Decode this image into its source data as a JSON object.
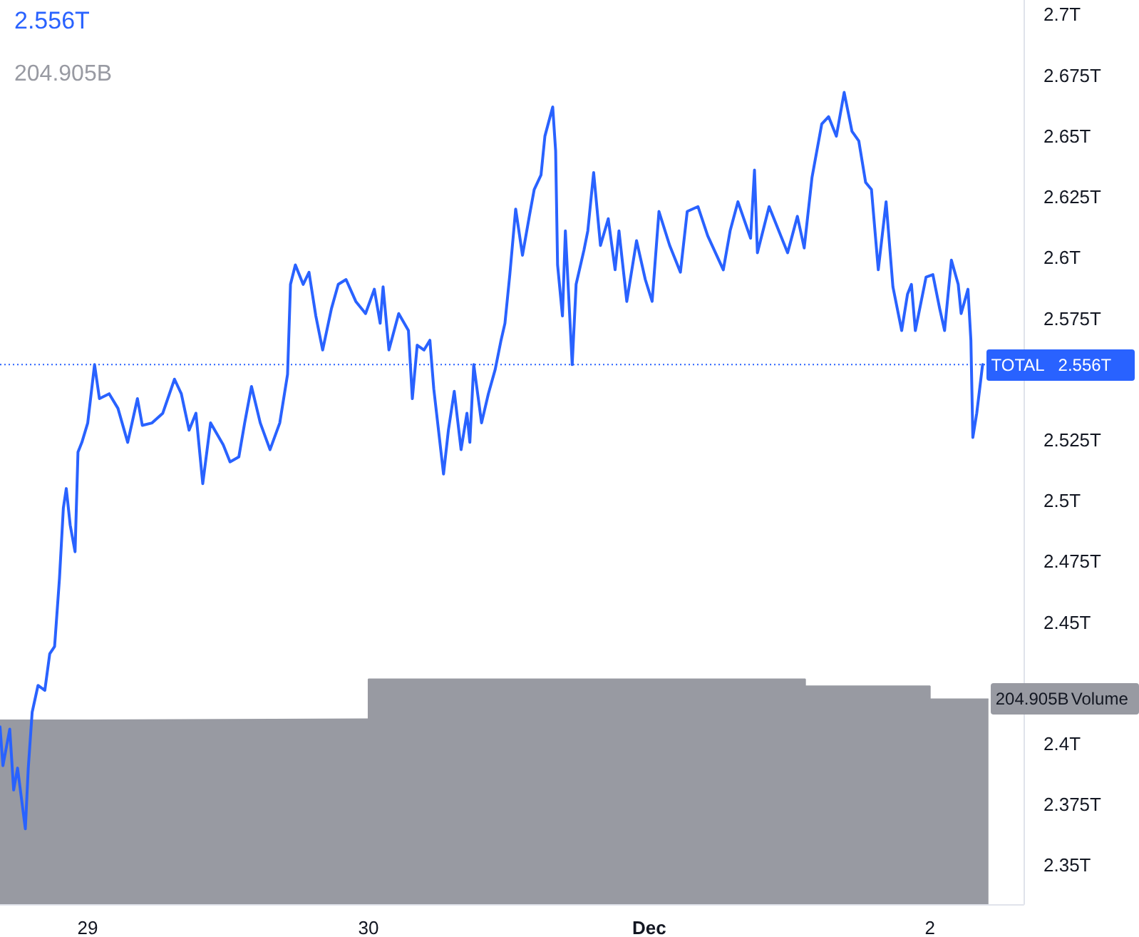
{
  "chart_data": {
    "type": "line",
    "annotations": [
      "2.556T",
      "204.905B"
    ],
    "xlim": [
      "--11-28T16:30",
      "--12-02T08:00"
    ],
    "xticks": [
      {
        "value": "--11-29",
        "label": "29"
      },
      {
        "value": "--11-30",
        "label": "30"
      },
      {
        "value": "--12-01",
        "label": "Dec"
      },
      {
        "value": "--12-02",
        "label": "2"
      }
    ],
    "ylim": [
      2.334,
      2.706
    ],
    "yticks": [
      {
        "value": 2.35,
        "label": "2.35T"
      },
      {
        "value": 2.375,
        "label": "2.375T"
      },
      {
        "value": 2.4,
        "label": "2.4T"
      },
      {
        "value": 2.45,
        "label": "2.45T"
      },
      {
        "value": 2.475,
        "label": "2.475T"
      },
      {
        "value": 2.5,
        "label": "2.5T"
      },
      {
        "value": 2.525,
        "label": "2.525T"
      },
      {
        "value": 2.575,
        "label": "2.575T"
      },
      {
        "value": 2.6,
        "label": "2.6T"
      },
      {
        "value": 2.625,
        "label": "2.625T"
      },
      {
        "value": 2.65,
        "label": "2.65T"
      },
      {
        "value": 2.675,
        "label": "2.675T"
      },
      {
        "value": 2.7,
        "label": "2.7T"
      }
    ],
    "y2lim": [
      0,
      904
    ],
    "grid": false,
    "legend": false,
    "ref_lines": [
      {
        "axis": "y",
        "value": 2.556,
        "label": "2.556T",
        "color": "#2962ff",
        "line_style": "dotted"
      }
    ],
    "series": [
      {
        "name": "TOTAL",
        "color": "#2962ff",
        "x": [
          "--11-28T16:30",
          "--11-28T16:45",
          "--11-28T17:20",
          "--11-28T17:40",
          "--11-28T18:00",
          "--11-28T18:40",
          "--11-28T18:55",
          "--11-28T19:15",
          "--11-28T19:45",
          "--11-28T20:20",
          "--11-28T20:45",
          "--11-28T21:10",
          "--11-28T21:35",
          "--11-28T21:55",
          "--11-28T22:10",
          "--11-28T22:30",
          "--11-28T22:55",
          "--11-28T23:10",
          "--11-28T23:30",
          "--11-29T00:00",
          "--11-29T00:35",
          "--11-29T01:00",
          "--11-29T01:50",
          "--11-29T02:35",
          "--11-29T03:25",
          "--11-29T04:15",
          "--11-29T04:40",
          "--11-29T05:30",
          "--11-29T06:25",
          "--11-29T07:25",
          "--11-29T08:00",
          "--11-29T08:40",
          "--11-29T09:15",
          "--11-29T09:50",
          "--11-29T10:30",
          "--11-29T11:35",
          "--11-29T12:10",
          "--11-29T12:55",
          "--11-29T13:25",
          "--11-29T14:00",
          "--11-29T14:45",
          "--11-29T15:35",
          "--11-29T16:25",
          "--11-29T17:05",
          "--11-29T17:20",
          "--11-29T17:45",
          "--11-29T18:25",
          "--11-29T18:55",
          "--11-29T19:30",
          "--11-29T20:05",
          "--11-29T20:50",
          "--11-29T21:25",
          "--11-29T22:05",
          "--11-29T22:55",
          "--11-29T23:45",
          "--11-30T00:30",
          "--11-30T01:00",
          "--11-30T01:15",
          "--11-30T01:45",
          "--11-30T02:35",
          "--11-30T03:25",
          "--11-30T03:45",
          "--11-30T04:10",
          "--11-30T04:45",
          "--11-30T05:15",
          "--11-30T05:35",
          "--11-30T06:25",
          "--11-30T06:50",
          "--11-30T07:20",
          "--11-30T07:55",
          "--11-30T08:25",
          "--11-30T08:40",
          "--11-30T09:00",
          "--11-30T09:40",
          "--11-30T10:15",
          "--11-30T10:50",
          "--11-30T11:20",
          "--11-30T11:40",
          "--11-30T12:05",
          "--11-30T12:35",
          "--11-30T13:10",
          "--11-30T13:45",
          "--11-30T14:10",
          "--11-30T14:45",
          "--11-30T15:05",
          "--11-30T15:45",
          "--11-30T16:00",
          "--11-30T16:10",
          "--11-30T16:35",
          "--11-30T16:50",
          "--11-30T17:25",
          "--11-30T17:45",
          "--11-30T18:25",
          "--11-30T18:45",
          "--11-30T19:15",
          "--11-30T19:50",
          "--11-30T20:30",
          "--11-30T21:05",
          "--11-30T21:25",
          "--11-30T22:05",
          "--11-30T22:55",
          "--11-30T23:40",
          "--12-01T00:15",
          "--12-01T00:50",
          "--12-01T01:45",
          "--12-01T02:40",
          "--12-01T03:15",
          "--12-01T04:10",
          "--12-01T05:00",
          "--12-01T06:20",
          "--12-01T06:55",
          "--12-01T07:35",
          "--12-01T08:40",
          "--12-01T09:00",
          "--12-01T09:15",
          "--12-01T10:15",
          "--12-01T11:25",
          "--12-01T11:50",
          "--12-01T12:40",
          "--12-01T13:15",
          "--12-01T13:55",
          "--12-01T14:45",
          "--12-01T15:20",
          "--12-01T16:00",
          "--12-01T16:40",
          "--12-01T17:20",
          "--12-01T17:55",
          "--12-01T18:30",
          "--12-01T19:00",
          "--12-01T19:35",
          "--12-01T20:15",
          "--12-01T20:50",
          "--12-01T21:35",
          "--12-01T22:05",
          "--12-01T22:25",
          "--12-01T22:45",
          "--12-01T23:40",
          "--12-02T00:15",
          "--12-02T00:50",
          "--12-02T01:15",
          "--12-02T01:50",
          "--12-02T02:25",
          "--12-02T02:40",
          "--12-02T03:15",
          "--12-02T03:30",
          "--12-02T03:40",
          "--12-02T04:00",
          "--12-02T04:30"
        ],
        "values": [
          2.407,
          2.391,
          2.406,
          2.381,
          2.39,
          2.365,
          2.39,
          2.413,
          2.424,
          2.422,
          2.437,
          2.44,
          2.468,
          2.497,
          2.505,
          2.49,
          2.479,
          2.52,
          2.524,
          2.532,
          2.556,
          2.542,
          2.544,
          2.538,
          2.524,
          2.542,
          2.531,
          2.532,
          2.536,
          2.55,
          2.544,
          2.529,
          2.536,
          2.507,
          2.532,
          2.523,
          2.516,
          2.518,
          2.532,
          2.547,
          2.532,
          2.521,
          2.532,
          2.552,
          2.589,
          2.597,
          2.589,
          2.594,
          2.576,
          2.562,
          2.579,
          2.589,
          2.591,
          2.582,
          2.577,
          2.587,
          2.573,
          2.588,
          2.562,
          2.577,
          2.57,
          2.542,
          2.564,
          2.562,
          2.566,
          2.546,
          2.511,
          2.529,
          2.545,
          2.521,
          2.536,
          2.524,
          2.556,
          2.532,
          2.544,
          2.554,
          2.566,
          2.573,
          2.593,
          2.62,
          2.601,
          2.617,
          2.628,
          2.634,
          2.65,
          2.662,
          2.644,
          2.597,
          2.576,
          2.611,
          2.556,
          2.589,
          2.603,
          2.611,
          2.635,
          2.605,
          2.616,
          2.595,
          2.611,
          2.582,
          2.607,
          2.591,
          2.582,
          2.619,
          2.605,
          2.594,
          2.619,
          2.621,
          2.609,
          2.595,
          2.611,
          2.623,
          2.608,
          2.636,
          2.602,
          2.621,
          2.607,
          2.602,
          2.617,
          2.604,
          2.633,
          2.655,
          2.658,
          2.65,
          2.668,
          2.652,
          2.648,
          2.631,
          2.628,
          2.595,
          2.623,
          2.588,
          2.57,
          2.585,
          2.589,
          2.57,
          2.592,
          2.593,
          2.579,
          2.57,
          2.599,
          2.589,
          2.577,
          2.587,
          2.566,
          2.526,
          2.536,
          2.556
        ]
      },
      {
        "name": "Volume",
        "type": "area",
        "axis": "y2",
        "color": "#989aa2",
        "x": [
          "--11-28T16:30",
          "--11-29T00:00",
          "--11-29T00:00",
          "--11-30T00:00",
          "--11-30T00:00",
          "--12-01T13:20",
          "--12-01T13:20",
          "--12-02T00:00",
          "--12-02T00:00",
          "--12-02T05:00"
        ],
        "values": [
          184,
          184,
          185,
          185,
          225,
          225,
          218,
          218,
          204.905,
          204.905
        ],
        "value_labels": [
          null,
          null,
          null,
          null,
          null,
          null,
          null,
          null,
          null,
          "204.905B"
        ]
      }
    ]
  }
}
